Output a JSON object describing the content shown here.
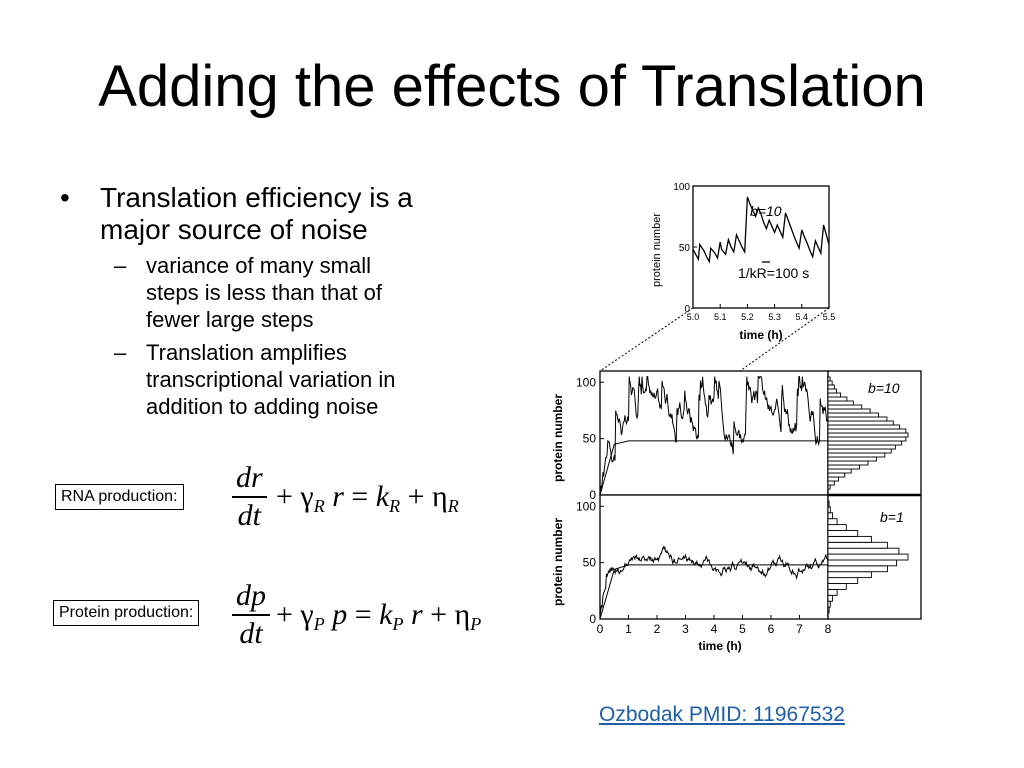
{
  "slide": {
    "title": "Adding the effects of Translation",
    "bullet_main_line1": "Translation efficiency is a",
    "bullet_main_line2": "major source of noise",
    "bullet_symbol": "•",
    "dash_symbol": "–",
    "sub1_line1": "variance of many small",
    "sub1_line2": "steps is less than that of",
    "sub1_line3": "fewer large steps",
    "sub2_line1": "Translation amplifies",
    "sub2_line2": "transcriptional variation in",
    "sub2_line3": "addition to adding noise"
  },
  "equations": {
    "rna_label": "RNA production:",
    "rna_num": "dr",
    "rna_den": "dt",
    "rna_rhs": "+ γR r = kR + ηR",
    "protein_label": "Protein production:",
    "protein_num": "dp",
    "protein_den": "dt",
    "protein_rhs": "+ γP p = kP r + ηP"
  },
  "citation": "Ozbodak PMID: 11967532",
  "chart_data": [
    {
      "type": "line",
      "panel": "inset",
      "ylabel": "protein number",
      "xlabel": "time (h)",
      "xlim": [
        5.0,
        5.5
      ],
      "ylim": [
        0,
        100
      ],
      "x_ticks": [
        "5.0",
        "5.1",
        "5.2",
        "5.3",
        "5.4",
        "5.5"
      ],
      "y_ticks": [
        "0",
        "50",
        "100"
      ],
      "annotation_b": "b=10",
      "annotation_k": "1/kR=100 s",
      "series": [
        {
          "x": [
            5.0,
            5.01,
            5.02,
            5.025,
            5.04,
            5.05,
            5.06,
            5.065,
            5.08,
            5.09,
            5.1,
            5.105,
            5.12,
            5.13,
            5.14,
            5.15,
            5.16,
            5.17,
            5.18,
            5.19,
            5.2,
            5.21,
            5.22,
            5.23,
            5.24,
            5.25,
            5.26,
            5.27,
            5.28,
            5.29,
            5.3,
            5.31,
            5.32,
            5.33,
            5.34,
            5.35,
            5.36,
            5.37,
            5.38,
            5.39,
            5.4,
            5.41,
            5.42,
            5.43,
            5.44,
            5.45,
            5.46,
            5.47,
            5.48,
            5.49,
            5.5
          ],
          "y": [
            48,
            44,
            40,
            52,
            47,
            42,
            38,
            49,
            45,
            41,
            54,
            48,
            44,
            56,
            50,
            46,
            60,
            55,
            50,
            46,
            91,
            85,
            80,
            75,
            82,
            77,
            70,
            65,
            72,
            67,
            62,
            68,
            63,
            58,
            78,
            72,
            66,
            60,
            54,
            49,
            64,
            58,
            53,
            47,
            42,
            55,
            50,
            45,
            68,
            60,
            52
          ]
        }
      ]
    },
    {
      "type": "line",
      "panel": "top",
      "ylabel": "protein number",
      "xlim": [
        0,
        8
      ],
      "ylim": [
        0,
        110
      ],
      "y_ticks": [
        "0",
        "50",
        "100"
      ],
      "annotation_b": "b=10",
      "series": [
        {
          "name": "simulation",
          "x": [],
          "y": []
        },
        {
          "name": "mean",
          "x": [
            0,
            0.5,
            1,
            8
          ],
          "y": [
            0,
            45,
            48,
            48
          ]
        }
      ],
      "histogram": [
        1,
        3,
        5,
        8,
        11,
        15,
        19,
        23,
        27,
        30,
        32,
        35,
        37,
        38,
        37,
        34,
        31,
        28,
        24,
        20,
        16,
        12,
        9,
        6,
        4,
        3,
        2,
        1
      ]
    },
    {
      "type": "line",
      "panel": "bottom",
      "ylabel": "protein number",
      "xlabel": "time (h)",
      "xlim": [
        0,
        8
      ],
      "ylim": [
        0,
        110
      ],
      "x_ticks": [
        "0",
        "1",
        "2",
        "3",
        "4",
        "5",
        "6",
        "7",
        "8"
      ],
      "y_ticks": [
        "0",
        "50",
        "100"
      ],
      "annotation_b": "b=1",
      "series": [
        {
          "name": "simulation",
          "x": [],
          "y": []
        },
        {
          "name": "mean",
          "x": [
            0,
            0.5,
            1,
            8
          ],
          "y": [
            0,
            44,
            48,
            48
          ]
        }
      ],
      "histogram": [
        1,
        2,
        4,
        8,
        16,
        26,
        38,
        52,
        60,
        70,
        62,
        52,
        38,
        26,
        16,
        8,
        4,
        2,
        1
      ]
    }
  ]
}
